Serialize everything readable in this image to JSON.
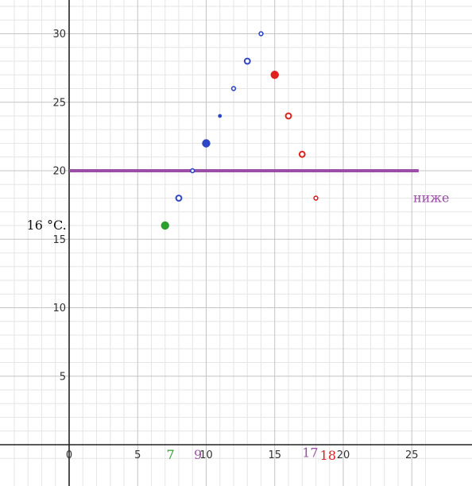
{
  "chart_data": {
    "type": "scatter",
    "xlim": [
      -4,
      26
    ],
    "ylim": [
      -1,
      32.5
    ],
    "grid": true,
    "minor_grid": true,
    "x_ticks": [
      0,
      5,
      10,
      15,
      20,
      25
    ],
    "y_ticks": [
      5,
      10,
      15,
      20,
      25,
      30
    ],
    "series": [
      {
        "color": "#2d46c8",
        "points": [
          {
            "x": 8,
            "y": 18,
            "style": "ring",
            "size": "medium"
          },
          {
            "x": 9,
            "y": 20,
            "style": "ring",
            "size": "small"
          },
          {
            "x": 10,
            "y": 22,
            "style": "dot",
            "size": "large"
          },
          {
            "x": 11,
            "y": 24,
            "style": "dot",
            "size": "small"
          },
          {
            "x": 12,
            "y": 26,
            "style": "ring",
            "size": "small"
          },
          {
            "x": 13,
            "y": 28,
            "style": "ring",
            "size": "medium"
          },
          {
            "x": 14,
            "y": 30,
            "style": "ring",
            "size": "small"
          }
        ]
      },
      {
        "color": "#e0201c",
        "points": [
          {
            "x": 15,
            "y": 27,
            "style": "dot",
            "size": "large"
          },
          {
            "x": 16,
            "y": 24,
            "style": "ring",
            "size": "medium"
          },
          {
            "x": 17,
            "y": 21.2,
            "style": "ring",
            "size": "medium"
          },
          {
            "x": 18,
            "y": 18,
            "style": "ring",
            "size": "small"
          }
        ]
      },
      {
        "color": "#2ca02c",
        "points": [
          {
            "x": 7,
            "y": 16,
            "style": "dot",
            "size": "large"
          }
        ]
      }
    ],
    "reference_line": {
      "y": 20,
      "x_start": 0,
      "x_end": 25.5,
      "color": "#9b4ea6"
    },
    "annotations": [
      {
        "text": "16 °C.",
        "x": -3.1,
        "y": 16,
        "color": "#111111",
        "size": "large"
      },
      {
        "text": "ниже",
        "x": 25.1,
        "y": 18,
        "color": "#9b4ea6",
        "size": "large"
      },
      {
        "text": "7",
        "x": 7.1,
        "y": -0.75,
        "color": "#2ca02c",
        "size": "large"
      },
      {
        "text": "9",
        "x": 9.1,
        "y": -0.75,
        "color": "#9b4ea6",
        "size": "large"
      },
      {
        "text": "17",
        "x": 17.0,
        "y": -0.6,
        "color": "#9b4ea6",
        "size": "large"
      },
      {
        "text": "18",
        "x": 18.3,
        "y": -0.8,
        "color": "#e0201c",
        "size": "large"
      }
    ]
  }
}
